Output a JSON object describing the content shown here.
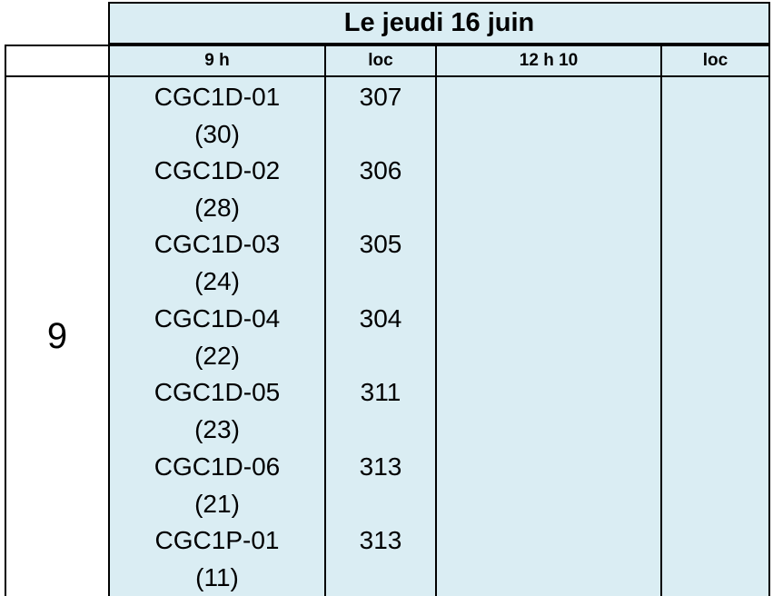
{
  "title": "Le jeudi 16 juin",
  "headers": {
    "blank": "",
    "morning_time": "9 h",
    "morning_loc": "loc",
    "afternoon_time": "12 h 10",
    "afternoon_loc": "loc"
  },
  "grade": "9",
  "morning_exams": [
    {
      "course": "CGC1D-01",
      "count": "(30)",
      "room": "307"
    },
    {
      "course": "CGC1D-02",
      "count": "(28)",
      "room": "306"
    },
    {
      "course": "CGC1D-03",
      "count": "(24)",
      "room": "305"
    },
    {
      "course": "CGC1D-04",
      "count": "(22)",
      "room": "304"
    },
    {
      "course": "CGC1D-05",
      "count": "(23)",
      "room": "311"
    },
    {
      "course": "CGC1D-06",
      "count": "(21)",
      "room": "313"
    },
    {
      "course": "CGC1P-01",
      "count": "(11)",
      "room": "313"
    }
  ],
  "colors": {
    "cell_fill": "#daedf3",
    "border": "#000000"
  }
}
